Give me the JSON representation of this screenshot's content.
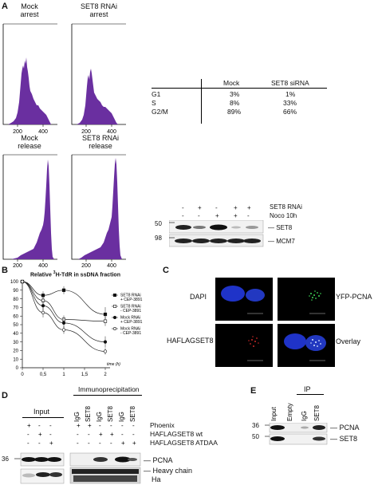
{
  "panelA": {
    "letter": "A",
    "histograms": [
      {
        "title1": "Mock",
        "title2": "arrest",
        "ticks": [
          "200",
          "400"
        ]
      },
      {
        "title1": "SET8 RNAi",
        "title2": "arrest",
        "ticks": [
          "200",
          "400"
        ]
      },
      {
        "title1": "Mock",
        "title2": "release",
        "ticks": [
          "200",
          "400"
        ]
      },
      {
        "title1": "SET8 RNAi",
        "title2": "release",
        "ticks": [
          "200",
          "400"
        ]
      }
    ],
    "table": {
      "headers": [
        "",
        "Mock",
        "SET8 siRNA"
      ],
      "rows": [
        [
          "G1",
          "3%",
          "1%"
        ],
        [
          "S",
          "8%",
          "33%"
        ],
        [
          "G2/M",
          "89%",
          "66%"
        ]
      ]
    },
    "blot": {
      "row1_signs": [
        "-",
        "+",
        "-",
        "+",
        "+"
      ],
      "row1_label": "SET8 RNAi",
      "row2_signs": [
        "-",
        "-",
        "+",
        "+",
        "-"
      ],
      "row2_label": "Noco 10h",
      "marker1": "50",
      "marker2": "98",
      "band1": "SET8",
      "band2": "MCM7"
    }
  },
  "panelB": {
    "letter": "B",
    "title_pre": "Relative ",
    "title_sup": "3",
    "title_post": "H-TdR in ssDNA fraction",
    "yticks": [
      "100",
      "90",
      "80",
      "70",
      "60",
      "50",
      "40",
      "30",
      "20",
      "10",
      "0"
    ],
    "xticks": [
      "0",
      "0,5",
      "1",
      "1,5",
      "2"
    ],
    "xlabel": "time (h)",
    "legend": [
      {
        "l1": "SET8 RNAi",
        "l2": "+ CEP-3891"
      },
      {
        "l1": "SET8 RNAi",
        "l2": "- CEP-3891"
      },
      {
        "l1": "Mock RNAi",
        "l2": "+ CEP-3891"
      },
      {
        "l1": "Mock RNAi",
        "l2": "- CEP-3891"
      }
    ]
  },
  "chart_data": {
    "type": "line",
    "title": "Relative 3H-TdR in ssDNA fraction",
    "xlabel": "time (h)",
    "ylabel": "",
    "x": [
      0,
      0.5,
      1,
      2
    ],
    "xlim": [
      0,
      2
    ],
    "ylim": [
      0,
      100
    ],
    "series": [
      {
        "name": "SET8 RNAi + CEP-3891",
        "marker": "filled-square",
        "values": [
          100,
          84,
          90,
          62
        ]
      },
      {
        "name": "SET8 RNAi - CEP-3891",
        "marker": "open-square",
        "values": [
          100,
          78,
          56,
          54
        ]
      },
      {
        "name": "Mock RNAi + CEP-3891",
        "marker": "filled-circle",
        "values": [
          100,
          72,
          52,
          30
        ]
      },
      {
        "name": "Mock RNAi - CEP-3891",
        "marker": "open-circle",
        "values": [
          100,
          64,
          44,
          19
        ]
      }
    ]
  },
  "panelC": {
    "letter": "C",
    "labels": [
      "DAPI",
      "YFP-PCNA",
      "HAFLAGSET8",
      "Overlay"
    ]
  },
  "panelD": {
    "letter": "D",
    "input_label": "Input",
    "ip_label": "Immunoprecipitation",
    "lanes": [
      "IgG",
      "SET8",
      "IgG",
      "SET8",
      "IgG",
      "SET8"
    ],
    "rows": [
      {
        "signs": [
          "+",
          "-",
          "-",
          "+",
          "+",
          "-",
          "-",
          "-",
          "-"
        ],
        "label": "Phoenix"
      },
      {
        "signs": [
          "-",
          "+",
          "-",
          "-",
          "-",
          "+",
          "+",
          "-",
          "-"
        ],
        "label": "HAFLAGSET8 wt"
      },
      {
        "signs": [
          "-",
          "-",
          "+",
          "-",
          "-",
          "-",
          "-",
          "+",
          "+"
        ],
        "label": "HAFLAGSET8 ATDAA"
      }
    ],
    "marker": "36",
    "band1": "PCNA",
    "band2a": "Heavy chain",
    "band2b": "Ha"
  },
  "panelE": {
    "letter": "E",
    "ip_label": "IP",
    "lanes": [
      "Input",
      "Empty",
      "IgG",
      "SET8"
    ],
    "marker1": "36",
    "marker2": "50",
    "band1": "PCNA",
    "band2": "SET8"
  }
}
